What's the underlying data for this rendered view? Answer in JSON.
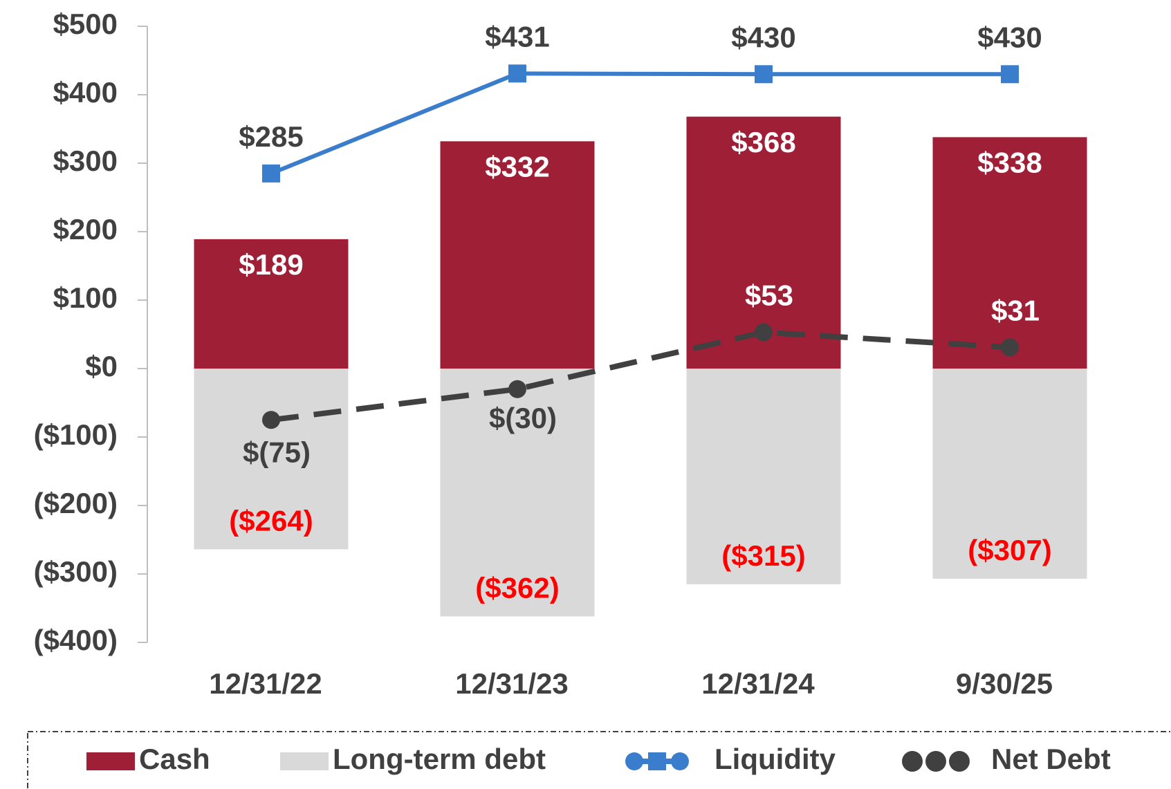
{
  "chart_data": {
    "type": "bar_line",
    "categories": [
      "12/31/22",
      "12/31/23",
      "12/31/24",
      "9/30/25"
    ],
    "series": [
      {
        "name": "Cash",
        "type": "bar",
        "color": "#9e1f36",
        "values": [
          189,
          332,
          368,
          338
        ],
        "value_labels": [
          "$189",
          "$332",
          "$368",
          "$338"
        ]
      },
      {
        "name": "Long-term debt",
        "type": "bar",
        "color": "#d9d9d9",
        "values": [
          -264,
          -362,
          -315,
          -307
        ],
        "value_labels": [
          "($264)",
          "($362)",
          "($315)",
          "($307)"
        ]
      },
      {
        "name": "Liquidity",
        "type": "line",
        "color": "#3a7dcc",
        "values": [
          285,
          431,
          430,
          430
        ],
        "value_labels": [
          "$285",
          "$431",
          "$430",
          "$430"
        ]
      },
      {
        "name": "Net Debt",
        "type": "line",
        "color": "#404040",
        "dashed": true,
        "values": [
          -75,
          -30,
          53,
          31
        ],
        "value_labels": [
          "$(75)",
          "$(30)",
          "$53",
          "$31"
        ]
      }
    ],
    "ylim": [
      -400,
      500
    ],
    "yticks": [
      {
        "value": -400,
        "label": "($400)"
      },
      {
        "value": -300,
        "label": "($300)"
      },
      {
        "value": -200,
        "label": "($200)"
      },
      {
        "value": -100,
        "label": "($100)"
      },
      {
        "value": 0,
        "label": "$0"
      },
      {
        "value": 100,
        "label": "$100"
      },
      {
        "value": 200,
        "label": "$200"
      },
      {
        "value": 300,
        "label": "$300"
      },
      {
        "value": 400,
        "label": "$400"
      },
      {
        "value": 500,
        "label": "$500"
      }
    ],
    "grid": false,
    "legend": "bottom"
  }
}
